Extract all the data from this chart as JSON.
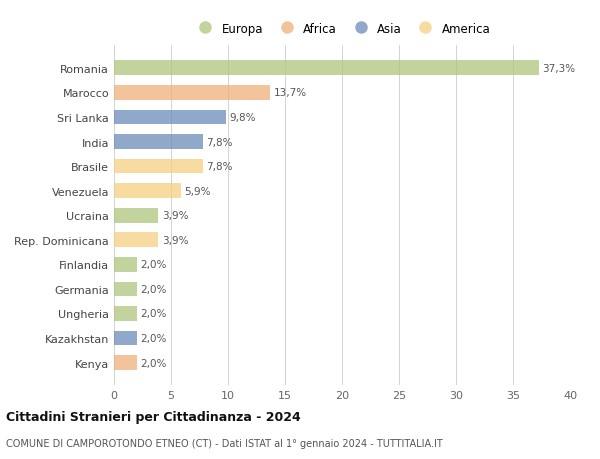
{
  "countries": [
    "Romania",
    "Marocco",
    "Sri Lanka",
    "India",
    "Brasile",
    "Venezuela",
    "Ucraina",
    "Rep. Dominicana",
    "Finlandia",
    "Germania",
    "Ungheria",
    "Kazakhstan",
    "Kenya"
  ],
  "values": [
    37.3,
    13.7,
    9.8,
    7.8,
    7.8,
    5.9,
    3.9,
    3.9,
    2.0,
    2.0,
    2.0,
    2.0,
    2.0
  ],
  "labels": [
    "37,3%",
    "13,7%",
    "9,8%",
    "7,8%",
    "7,8%",
    "5,9%",
    "3,9%",
    "3,9%",
    "2,0%",
    "2,0%",
    "2,0%",
    "2,0%",
    "2,0%"
  ],
  "continents": [
    "Europa",
    "Africa",
    "Asia",
    "Asia",
    "America",
    "America",
    "Europa",
    "America",
    "Europa",
    "Europa",
    "Europa",
    "Asia",
    "Africa"
  ],
  "continent_colors": {
    "Europa": "#aec57d",
    "Africa": "#f0b07a",
    "Asia": "#6b8cba",
    "America": "#f5d080"
  },
  "legend_order": [
    "Europa",
    "Africa",
    "Asia",
    "America"
  ],
  "title": "Cittadini Stranieri per Cittadinanza - 2024",
  "subtitle": "COMUNE DI CAMPOROTONDO ETNEO (CT) - Dati ISTAT al 1° gennaio 2024 - TUTTITALIA.IT",
  "xlim": [
    0,
    40
  ],
  "xticks": [
    0,
    5,
    10,
    15,
    20,
    25,
    30,
    35,
    40
  ],
  "background_color": "#ffffff",
  "bar_alpha": 0.75
}
